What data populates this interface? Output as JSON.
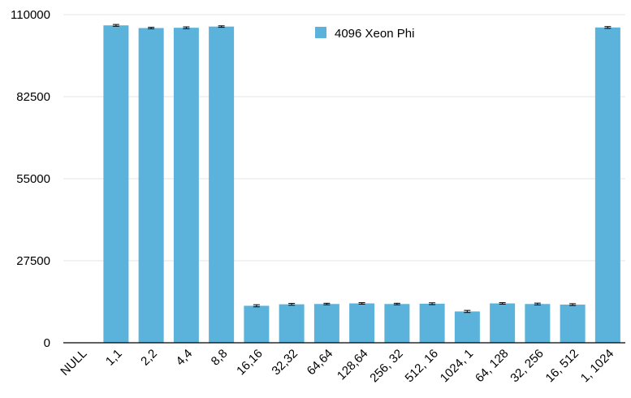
{
  "chart_data": {
    "type": "bar",
    "categories": [
      "NULL",
      "1,1",
      "2,2",
      "4,4",
      "8,8",
      "16,16",
      "32,32",
      "64,64",
      "128,64",
      "256, 32",
      "512, 16",
      "1024, 1",
      "64, 128",
      "32, 256",
      "16, 512",
      "1, 1024"
    ],
    "series": [
      {
        "name": "4096 Xeon Phi",
        "values": [
          null,
          106400,
          105500,
          105600,
          106000,
          12400,
          12900,
          13000,
          13200,
          13000,
          13100,
          10500,
          13200,
          13000,
          12800,
          105700
        ]
      }
    ],
    "error_bars": [
      null,
      300,
      250,
      300,
      250,
      350,
      300,
      250,
      250,
      250,
      300,
      350,
      250,
      300,
      300,
      300
    ],
    "yticks": [
      "0",
      "27500",
      "55000",
      "82500",
      "110000"
    ],
    "ylim": [
      0,
      110000
    ],
    "grid": true,
    "legend_position": "top-center",
    "colors": {
      "bar": "#5BB3DB",
      "grid": "#e6e6e6",
      "axis": "#000000",
      "error": "#000000"
    }
  }
}
